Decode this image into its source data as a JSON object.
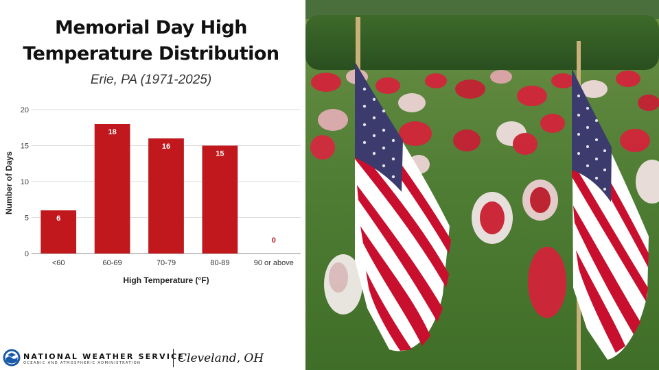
{
  "slide": {
    "title_line1": "Memorial Day High",
    "title_line2": "Temperature Distribution",
    "subtitle": "Erie, PA (1971-2025)"
  },
  "chart_data": {
    "type": "bar",
    "categories": [
      "<60",
      "60-69",
      "70-79",
      "80-89",
      "90 or above"
    ],
    "values": [
      6,
      18,
      16,
      15,
      0
    ],
    "data_labels": [
      "6",
      "18",
      "16",
      "15",
      "0"
    ],
    "xlabel": "High Temperature (°F)",
    "ylabel": "Number of Days",
    "ylim": [
      0,
      20
    ],
    "yticks": [
      "0",
      "5",
      "10",
      "15",
      "20"
    ],
    "grid": true,
    "legend": "none",
    "bar_color": "#c0181c",
    "label_color_inside": "#ffffff",
    "label_color_outside": "#c0181c"
  },
  "footer": {
    "agency_name": "NATIONAL WEATHER SERVICE",
    "agency_subname": "OCEANIC AND ATMOSPHERIC ADMINISTRATION",
    "office": "Cleveland, OH"
  },
  "photo": {
    "subject": "american-flags-with-red-white-flowers",
    "grass_color": "#4f7d34",
    "hedge_color": "#2f5a26",
    "flower_red": "#d6223a",
    "flag_red": "#c8102e",
    "flag_blue": "#3c3b6e"
  }
}
